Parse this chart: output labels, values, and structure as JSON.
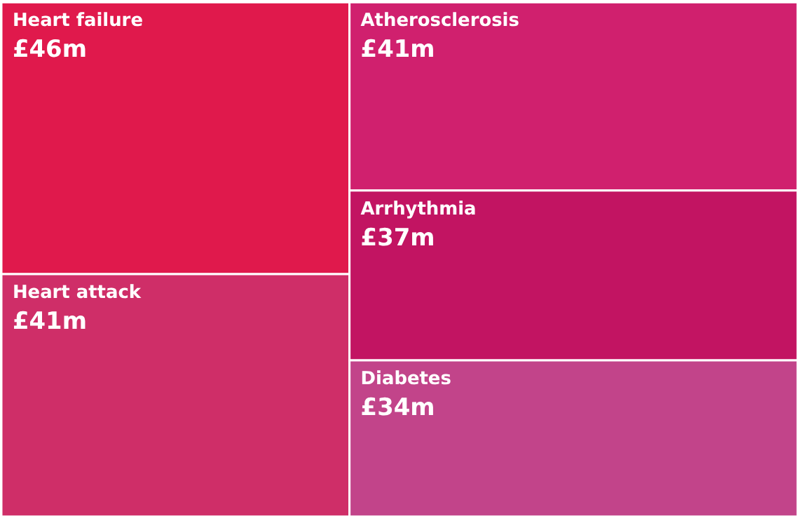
{
  "chart_data": {
    "type": "other",
    "categories": [
      "Heart failure",
      "Heart attack",
      "Atherosclerosis",
      "Arrhythmia",
      "Diabetes"
    ],
    "values": [
      46,
      41,
      41,
      37,
      34
    ],
    "value_labels": [
      "£46m",
      "£41m",
      "£41m",
      "£37m",
      "£34m"
    ],
    "colors": [
      "#e0194c",
      "#cf2e68",
      "#d0206e",
      "#c21462",
      "#c2448a"
    ]
  }
}
